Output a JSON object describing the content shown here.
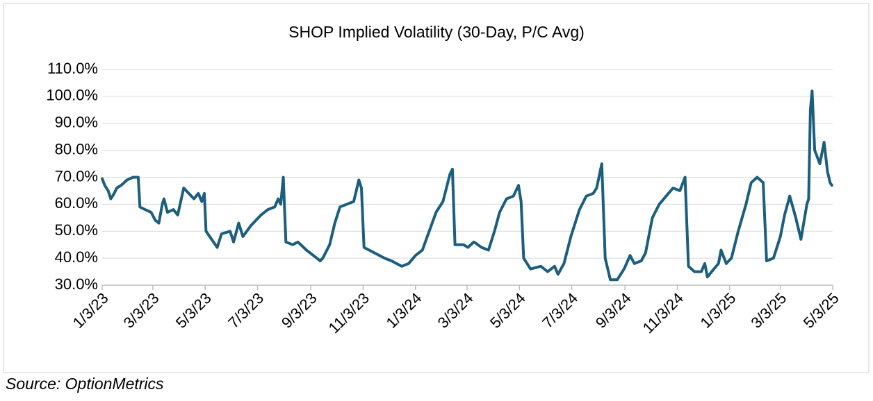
{
  "chart_data": {
    "type": "line",
    "title": "SHOP Implied Volatility (30-Day, P/C Avg)",
    "source": "Source: OptionMetrics",
    "color": "#1b5e7e",
    "grid": true,
    "ylim": [
      30,
      110
    ],
    "yticks": [
      {
        "value": 30,
        "label": "30.0%"
      },
      {
        "value": 40,
        "label": "40.0%"
      },
      {
        "value": 50,
        "label": "50.0%"
      },
      {
        "value": 60,
        "label": "60.0%"
      },
      {
        "value": 70,
        "label": "70.0%"
      },
      {
        "value": 80,
        "label": "80.0%"
      },
      {
        "value": 90,
        "label": "90.0%"
      },
      {
        "value": 100,
        "label": "100.0%"
      },
      {
        "value": 110,
        "label": "110.0%"
      }
    ],
    "xlim": [
      "2023-01-03",
      "2025-05-03"
    ],
    "xticks": [
      {
        "value": "2023-01-03",
        "label": "1/3/23"
      },
      {
        "value": "2023-03-03",
        "label": "3/3/23"
      },
      {
        "value": "2023-05-03",
        "label": "5/3/23"
      },
      {
        "value": "2023-07-03",
        "label": "7/3/23"
      },
      {
        "value": "2023-09-03",
        "label": "9/3/23"
      },
      {
        "value": "2023-11-03",
        "label": "11/3/23"
      },
      {
        "value": "2024-01-03",
        "label": "1/3/24"
      },
      {
        "value": "2024-03-03",
        "label": "3/3/24"
      },
      {
        "value": "2024-05-03",
        "label": "5/3/24"
      },
      {
        "value": "2024-07-03",
        "label": "7/3/24"
      },
      {
        "value": "2024-09-03",
        "label": "9/3/24"
      },
      {
        "value": "2024-11-03",
        "label": "11/3/24"
      },
      {
        "value": "2025-01-03",
        "label": "1/3/25"
      },
      {
        "value": "2025-03-03",
        "label": "3/3/25"
      },
      {
        "value": "2025-05-03",
        "label": "5/3/25"
      }
    ],
    "x": [
      "2023-01-03",
      "2023-01-06",
      "2023-01-10",
      "2023-01-13",
      "2023-01-17",
      "2023-01-20",
      "2023-01-25",
      "2023-02-01",
      "2023-02-08",
      "2023-02-14",
      "2023-02-16",
      "2023-02-22",
      "2023-03-01",
      "2023-03-06",
      "2023-03-10",
      "2023-03-14",
      "2023-03-16",
      "2023-03-20",
      "2023-03-27",
      "2023-04-01",
      "2023-04-08",
      "2023-04-20",
      "2023-04-25",
      "2023-04-29",
      "2023-05-02",
      "2023-05-04",
      "2023-05-17",
      "2023-05-22",
      "2023-06-01",
      "2023-06-05",
      "2023-06-11",
      "2023-06-16",
      "2023-06-25",
      "2023-07-07",
      "2023-07-15",
      "2023-07-23",
      "2023-07-27",
      "2023-07-30",
      "2023-08-02",
      "2023-08-05",
      "2023-08-13",
      "2023-08-19",
      "2023-08-29",
      "2023-09-06",
      "2023-09-14",
      "2023-09-17",
      "2023-09-25",
      "2023-10-01",
      "2023-10-07",
      "2023-10-15",
      "2023-10-23",
      "2023-10-29",
      "2023-11-01",
      "2023-11-04",
      "2023-11-16",
      "2023-11-28",
      "2023-12-06",
      "2023-12-18",
      "2023-12-26",
      "2024-01-03",
      "2024-01-11",
      "2024-01-19",
      "2024-01-27",
      "2024-02-04",
      "2024-02-12",
      "2024-02-15",
      "2024-02-18",
      "2024-02-28",
      "2024-03-04",
      "2024-03-11",
      "2024-03-20",
      "2024-03-28",
      "2024-04-04",
      "2024-04-10",
      "2024-04-18",
      "2024-04-26",
      "2024-05-02",
      "2024-05-05",
      "2024-05-08",
      "2024-05-16",
      "2024-05-28",
      "2024-06-05",
      "2024-06-13",
      "2024-06-17",
      "2024-06-24",
      "2024-07-02",
      "2024-07-12",
      "2024-07-20",
      "2024-07-28",
      "2024-08-01",
      "2024-08-07",
      "2024-08-11",
      "2024-08-17",
      "2024-08-25",
      "2024-09-02",
      "2024-09-09",
      "2024-09-14",
      "2024-09-22",
      "2024-09-27",
      "2024-10-05",
      "2024-10-13",
      "2024-10-21",
      "2024-10-29",
      "2024-11-06",
      "2024-11-12",
      "2024-11-16",
      "2024-11-23",
      "2024-12-01",
      "2024-12-05",
      "2024-12-08",
      "2024-12-13",
      "2024-12-21",
      "2024-12-24",
      "2024-12-30",
      "2025-01-05",
      "2025-01-13",
      "2025-01-22",
      "2025-01-28",
      "2025-02-04",
      "2025-02-11",
      "2025-02-15",
      "2025-02-23",
      "2025-03-03",
      "2025-03-08",
      "2025-03-14",
      "2025-03-21",
      "2025-03-27",
      "2025-04-03",
      "2025-04-05",
      "2025-04-07",
      "2025-04-09",
      "2025-04-12",
      "2025-04-18",
      "2025-04-23",
      "2025-04-27",
      "2025-04-30",
      "2025-05-02"
    ],
    "values": [
      69.5,
      67,
      65,
      62,
      64,
      66,
      67,
      69,
      70,
      70,
      59,
      58,
      57,
      54,
      53,
      60,
      62,
      57,
      58,
      56,
      66,
      62,
      64,
      61,
      64,
      50,
      44,
      49,
      50,
      46,
      53,
      48,
      52,
      56,
      58,
      59,
      62,
      60,
      70,
      46,
      45,
      46,
      43,
      41,
      39,
      40,
      45,
      53,
      59,
      60,
      61,
      69,
      66,
      44,
      42,
      40,
      39,
      37,
      38,
      41,
      43,
      50,
      57,
      61,
      71,
      73,
      45,
      45,
      44,
      46,
      44,
      43,
      50,
      57,
      62,
      63,
      67,
      61,
      40,
      36,
      37,
      35,
      37,
      34,
      38,
      48,
      58,
      63,
      64,
      66,
      75,
      40,
      32,
      32,
      36,
      41,
      38,
      39,
      42,
      55,
      60,
      63,
      66,
      65,
      70,
      37,
      35,
      35,
      38,
      33,
      35,
      38,
      43,
      38,
      40,
      50,
      60,
      68,
      70,
      68,
      39,
      40,
      48,
      56,
      63,
      55,
      47,
      60,
      62,
      95,
      102,
      80,
      75,
      83,
      72,
      68,
      67
    ]
  }
}
